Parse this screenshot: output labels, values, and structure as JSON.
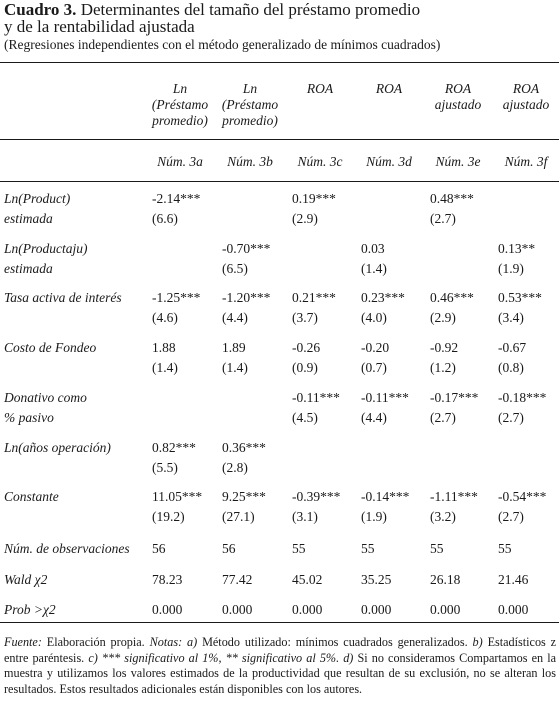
{
  "title": {
    "label": "Cuadro 3.",
    "text": "Determinantes del tamaño del préstamo promedio",
    "text2": "y de la rentabilidad ajustada",
    "subtitle": "(Regresiones independientes con el método generalizado de mínimos cuadrados)"
  },
  "columns": [
    {
      "h1": "Ln",
      "h2": "(Préstamo",
      "h3": "promedio)",
      "num": "Núm. 3a"
    },
    {
      "h1": "Ln",
      "h2": "(Préstamo",
      "h3": "promedio)",
      "num": "Núm. 3b"
    },
    {
      "h1": "ROA",
      "h2": "",
      "h3": "",
      "num": "Núm. 3c"
    },
    {
      "h1": "ROA",
      "h2": "",
      "h3": "",
      "num": "Núm. 3d"
    },
    {
      "h1": "ROA",
      "h2": "ajustado",
      "h3": "",
      "num": "Núm. 3e"
    },
    {
      "h1": "ROA",
      "h2": "ajustado",
      "h3": "",
      "num": "Núm. 3f"
    }
  ],
  "rows": [
    {
      "label1": "Ln(Product)",
      "label2": "estimada",
      "coef": [
        "-2.14***",
        "",
        "0.19***",
        "",
        "0.48***",
        ""
      ],
      "se": [
        "(6.6)",
        "",
        "(2.9)",
        "",
        "(2.7)",
        ""
      ]
    },
    {
      "label1": "Ln(Productaju)",
      "label2": "estimada",
      "coef": [
        "",
        "-0.70***",
        "",
        "0.03",
        "",
        "0.13**"
      ],
      "se": [
        "",
        "(6.5)",
        "",
        "(1.4)",
        "",
        "(1.9)"
      ]
    },
    {
      "label1": "Tasa activa de interés",
      "label2": "",
      "coef": [
        "-1.25***",
        "-1.20***",
        "0.21***",
        "0.23***",
        "0.46***",
        "0.53***"
      ],
      "se": [
        "(4.6)",
        "(4.4)",
        "(3.7)",
        "(4.0)",
        "(2.9)",
        "(3.4)"
      ]
    },
    {
      "label1": "Costo de Fondeo",
      "label2": "",
      "coef": [
        "1.88",
        "1.89",
        "-0.26",
        "-0.20",
        "-0.92",
        "-0.67"
      ],
      "se": [
        "(1.4)",
        "(1.4)",
        "(0.9)",
        "(0.7)",
        "(1.2)",
        "(0.8)"
      ]
    },
    {
      "label1": "Donativo como",
      "label2": "% pasivo",
      "coef": [
        "",
        "",
        "-0.11***",
        "-0.11***",
        "-0.17***",
        "-0.18***"
      ],
      "se": [
        "",
        "",
        "(4.5)",
        "(4.4)",
        "(2.7)",
        "(2.7)"
      ]
    },
    {
      "label1": "Ln(años operación)",
      "label2": "",
      "coef": [
        "0.82***",
        "0.36***",
        "",
        "",
        "",
        ""
      ],
      "se": [
        "(5.5)",
        "(2.8)",
        "",
        "",
        "",
        ""
      ]
    },
    {
      "label1": "Constante",
      "label2": "",
      "coef": [
        "11.05***",
        "9.25***",
        "-0.39***",
        "-0.14***",
        "-1.11***",
        "-0.54***"
      ],
      "se": [
        "(19.2)",
        "(27.1)",
        "(3.1)",
        "(1.9)",
        "(3.2)",
        "(2.7)"
      ]
    }
  ],
  "stats": [
    {
      "label": "Núm. de observaciones",
      "values": [
        "56",
        "56",
        "55",
        "55",
        "55",
        "55"
      ]
    },
    {
      "label": "Wald χ2",
      "values": [
        "78.23",
        "77.42",
        "45.02",
        "35.25",
        "26.18",
        "21.46"
      ]
    },
    {
      "label": "Prob >χ2",
      "values": [
        "0.000",
        "0.000",
        "0.000",
        "0.000",
        "0.000",
        "0.000"
      ]
    }
  ],
  "footer": {
    "fuente": "Fuente:",
    "fuente_text": "Elaboración propia.",
    "notas": "Notas: a)",
    "notas_a": "Método utilizado: mínimos cuadrados generalizados.",
    "notas_b_label": "b)",
    "notas_b": "Estadísticos z entre paréntesis.",
    "notas_c_label": "c) *** significativo al 1%, ** significativo al 5%. d)",
    "notas_d": "Si no consideramos Compartamos en la muestra y utilizamos los valores estimados de la productividad que resultan de su exclusión, no se alteran los resultados. Estos resultados adicionales están disponibles con los autores."
  }
}
